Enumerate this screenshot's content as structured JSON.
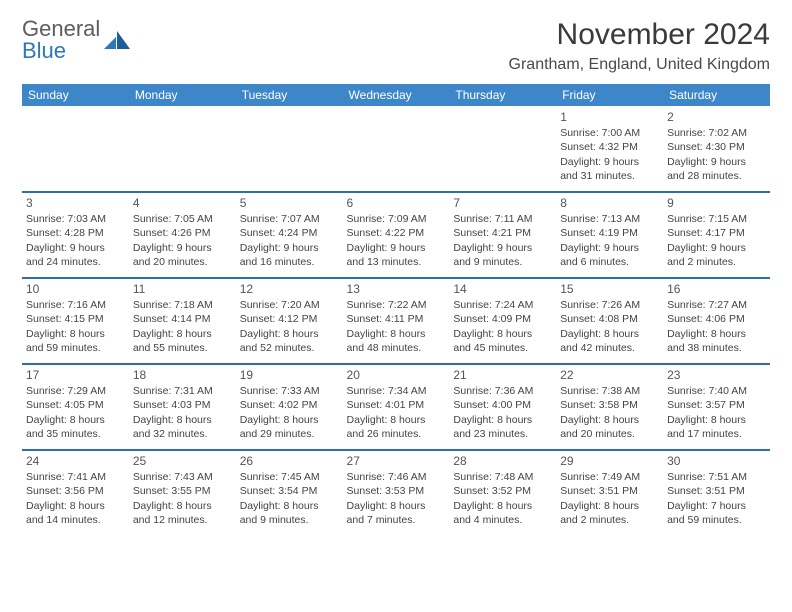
{
  "brand": {
    "line1": "General",
    "line2": "Blue"
  },
  "title": "November 2024",
  "location": "Grantham, England, United Kingdom",
  "colors": {
    "header_bg": "#3d87c9",
    "header_text": "#ffffff",
    "week_sep": "#2f6fa8",
    "text": "#444444",
    "brand_gray": "#5c5c5c",
    "brand_blue": "#2f77bb"
  },
  "calendar": {
    "type": "table",
    "days_of_week": [
      "Sunday",
      "Monday",
      "Tuesday",
      "Wednesday",
      "Thursday",
      "Friday",
      "Saturday"
    ],
    "weeks": [
      [
        null,
        null,
        null,
        null,
        null,
        {
          "day": "1",
          "sunrise": "Sunrise: 7:00 AM",
          "sunset": "Sunset: 4:32 PM",
          "daylight": "Daylight: 9 hours and 31 minutes."
        },
        {
          "day": "2",
          "sunrise": "Sunrise: 7:02 AM",
          "sunset": "Sunset: 4:30 PM",
          "daylight": "Daylight: 9 hours and 28 minutes."
        }
      ],
      [
        {
          "day": "3",
          "sunrise": "Sunrise: 7:03 AM",
          "sunset": "Sunset: 4:28 PM",
          "daylight": "Daylight: 9 hours and 24 minutes."
        },
        {
          "day": "4",
          "sunrise": "Sunrise: 7:05 AM",
          "sunset": "Sunset: 4:26 PM",
          "daylight": "Daylight: 9 hours and 20 minutes."
        },
        {
          "day": "5",
          "sunrise": "Sunrise: 7:07 AM",
          "sunset": "Sunset: 4:24 PM",
          "daylight": "Daylight: 9 hours and 16 minutes."
        },
        {
          "day": "6",
          "sunrise": "Sunrise: 7:09 AM",
          "sunset": "Sunset: 4:22 PM",
          "daylight": "Daylight: 9 hours and 13 minutes."
        },
        {
          "day": "7",
          "sunrise": "Sunrise: 7:11 AM",
          "sunset": "Sunset: 4:21 PM",
          "daylight": "Daylight: 9 hours and 9 minutes."
        },
        {
          "day": "8",
          "sunrise": "Sunrise: 7:13 AM",
          "sunset": "Sunset: 4:19 PM",
          "daylight": "Daylight: 9 hours and 6 minutes."
        },
        {
          "day": "9",
          "sunrise": "Sunrise: 7:15 AM",
          "sunset": "Sunset: 4:17 PM",
          "daylight": "Daylight: 9 hours and 2 minutes."
        }
      ],
      [
        {
          "day": "10",
          "sunrise": "Sunrise: 7:16 AM",
          "sunset": "Sunset: 4:15 PM",
          "daylight": "Daylight: 8 hours and 59 minutes."
        },
        {
          "day": "11",
          "sunrise": "Sunrise: 7:18 AM",
          "sunset": "Sunset: 4:14 PM",
          "daylight": "Daylight: 8 hours and 55 minutes."
        },
        {
          "day": "12",
          "sunrise": "Sunrise: 7:20 AM",
          "sunset": "Sunset: 4:12 PM",
          "daylight": "Daylight: 8 hours and 52 minutes."
        },
        {
          "day": "13",
          "sunrise": "Sunrise: 7:22 AM",
          "sunset": "Sunset: 4:11 PM",
          "daylight": "Daylight: 8 hours and 48 minutes."
        },
        {
          "day": "14",
          "sunrise": "Sunrise: 7:24 AM",
          "sunset": "Sunset: 4:09 PM",
          "daylight": "Daylight: 8 hours and 45 minutes."
        },
        {
          "day": "15",
          "sunrise": "Sunrise: 7:26 AM",
          "sunset": "Sunset: 4:08 PM",
          "daylight": "Daylight: 8 hours and 42 minutes."
        },
        {
          "day": "16",
          "sunrise": "Sunrise: 7:27 AM",
          "sunset": "Sunset: 4:06 PM",
          "daylight": "Daylight: 8 hours and 38 minutes."
        }
      ],
      [
        {
          "day": "17",
          "sunrise": "Sunrise: 7:29 AM",
          "sunset": "Sunset: 4:05 PM",
          "daylight": "Daylight: 8 hours and 35 minutes."
        },
        {
          "day": "18",
          "sunrise": "Sunrise: 7:31 AM",
          "sunset": "Sunset: 4:03 PM",
          "daylight": "Daylight: 8 hours and 32 minutes."
        },
        {
          "day": "19",
          "sunrise": "Sunrise: 7:33 AM",
          "sunset": "Sunset: 4:02 PM",
          "daylight": "Daylight: 8 hours and 29 minutes."
        },
        {
          "day": "20",
          "sunrise": "Sunrise: 7:34 AM",
          "sunset": "Sunset: 4:01 PM",
          "daylight": "Daylight: 8 hours and 26 minutes."
        },
        {
          "day": "21",
          "sunrise": "Sunrise: 7:36 AM",
          "sunset": "Sunset: 4:00 PM",
          "daylight": "Daylight: 8 hours and 23 minutes."
        },
        {
          "day": "22",
          "sunrise": "Sunrise: 7:38 AM",
          "sunset": "Sunset: 3:58 PM",
          "daylight": "Daylight: 8 hours and 20 minutes."
        },
        {
          "day": "23",
          "sunrise": "Sunrise: 7:40 AM",
          "sunset": "Sunset: 3:57 PM",
          "daylight": "Daylight: 8 hours and 17 minutes."
        }
      ],
      [
        {
          "day": "24",
          "sunrise": "Sunrise: 7:41 AM",
          "sunset": "Sunset: 3:56 PM",
          "daylight": "Daylight: 8 hours and 14 minutes."
        },
        {
          "day": "25",
          "sunrise": "Sunrise: 7:43 AM",
          "sunset": "Sunset: 3:55 PM",
          "daylight": "Daylight: 8 hours and 12 minutes."
        },
        {
          "day": "26",
          "sunrise": "Sunrise: 7:45 AM",
          "sunset": "Sunset: 3:54 PM",
          "daylight": "Daylight: 8 hours and 9 minutes."
        },
        {
          "day": "27",
          "sunrise": "Sunrise: 7:46 AM",
          "sunset": "Sunset: 3:53 PM",
          "daylight": "Daylight: 8 hours and 7 minutes."
        },
        {
          "day": "28",
          "sunrise": "Sunrise: 7:48 AM",
          "sunset": "Sunset: 3:52 PM",
          "daylight": "Daylight: 8 hours and 4 minutes."
        },
        {
          "day": "29",
          "sunrise": "Sunrise: 7:49 AM",
          "sunset": "Sunset: 3:51 PM",
          "daylight": "Daylight: 8 hours and 2 minutes."
        },
        {
          "day": "30",
          "sunrise": "Sunrise: 7:51 AM",
          "sunset": "Sunset: 3:51 PM",
          "daylight": "Daylight: 7 hours and 59 minutes."
        }
      ]
    ]
  }
}
